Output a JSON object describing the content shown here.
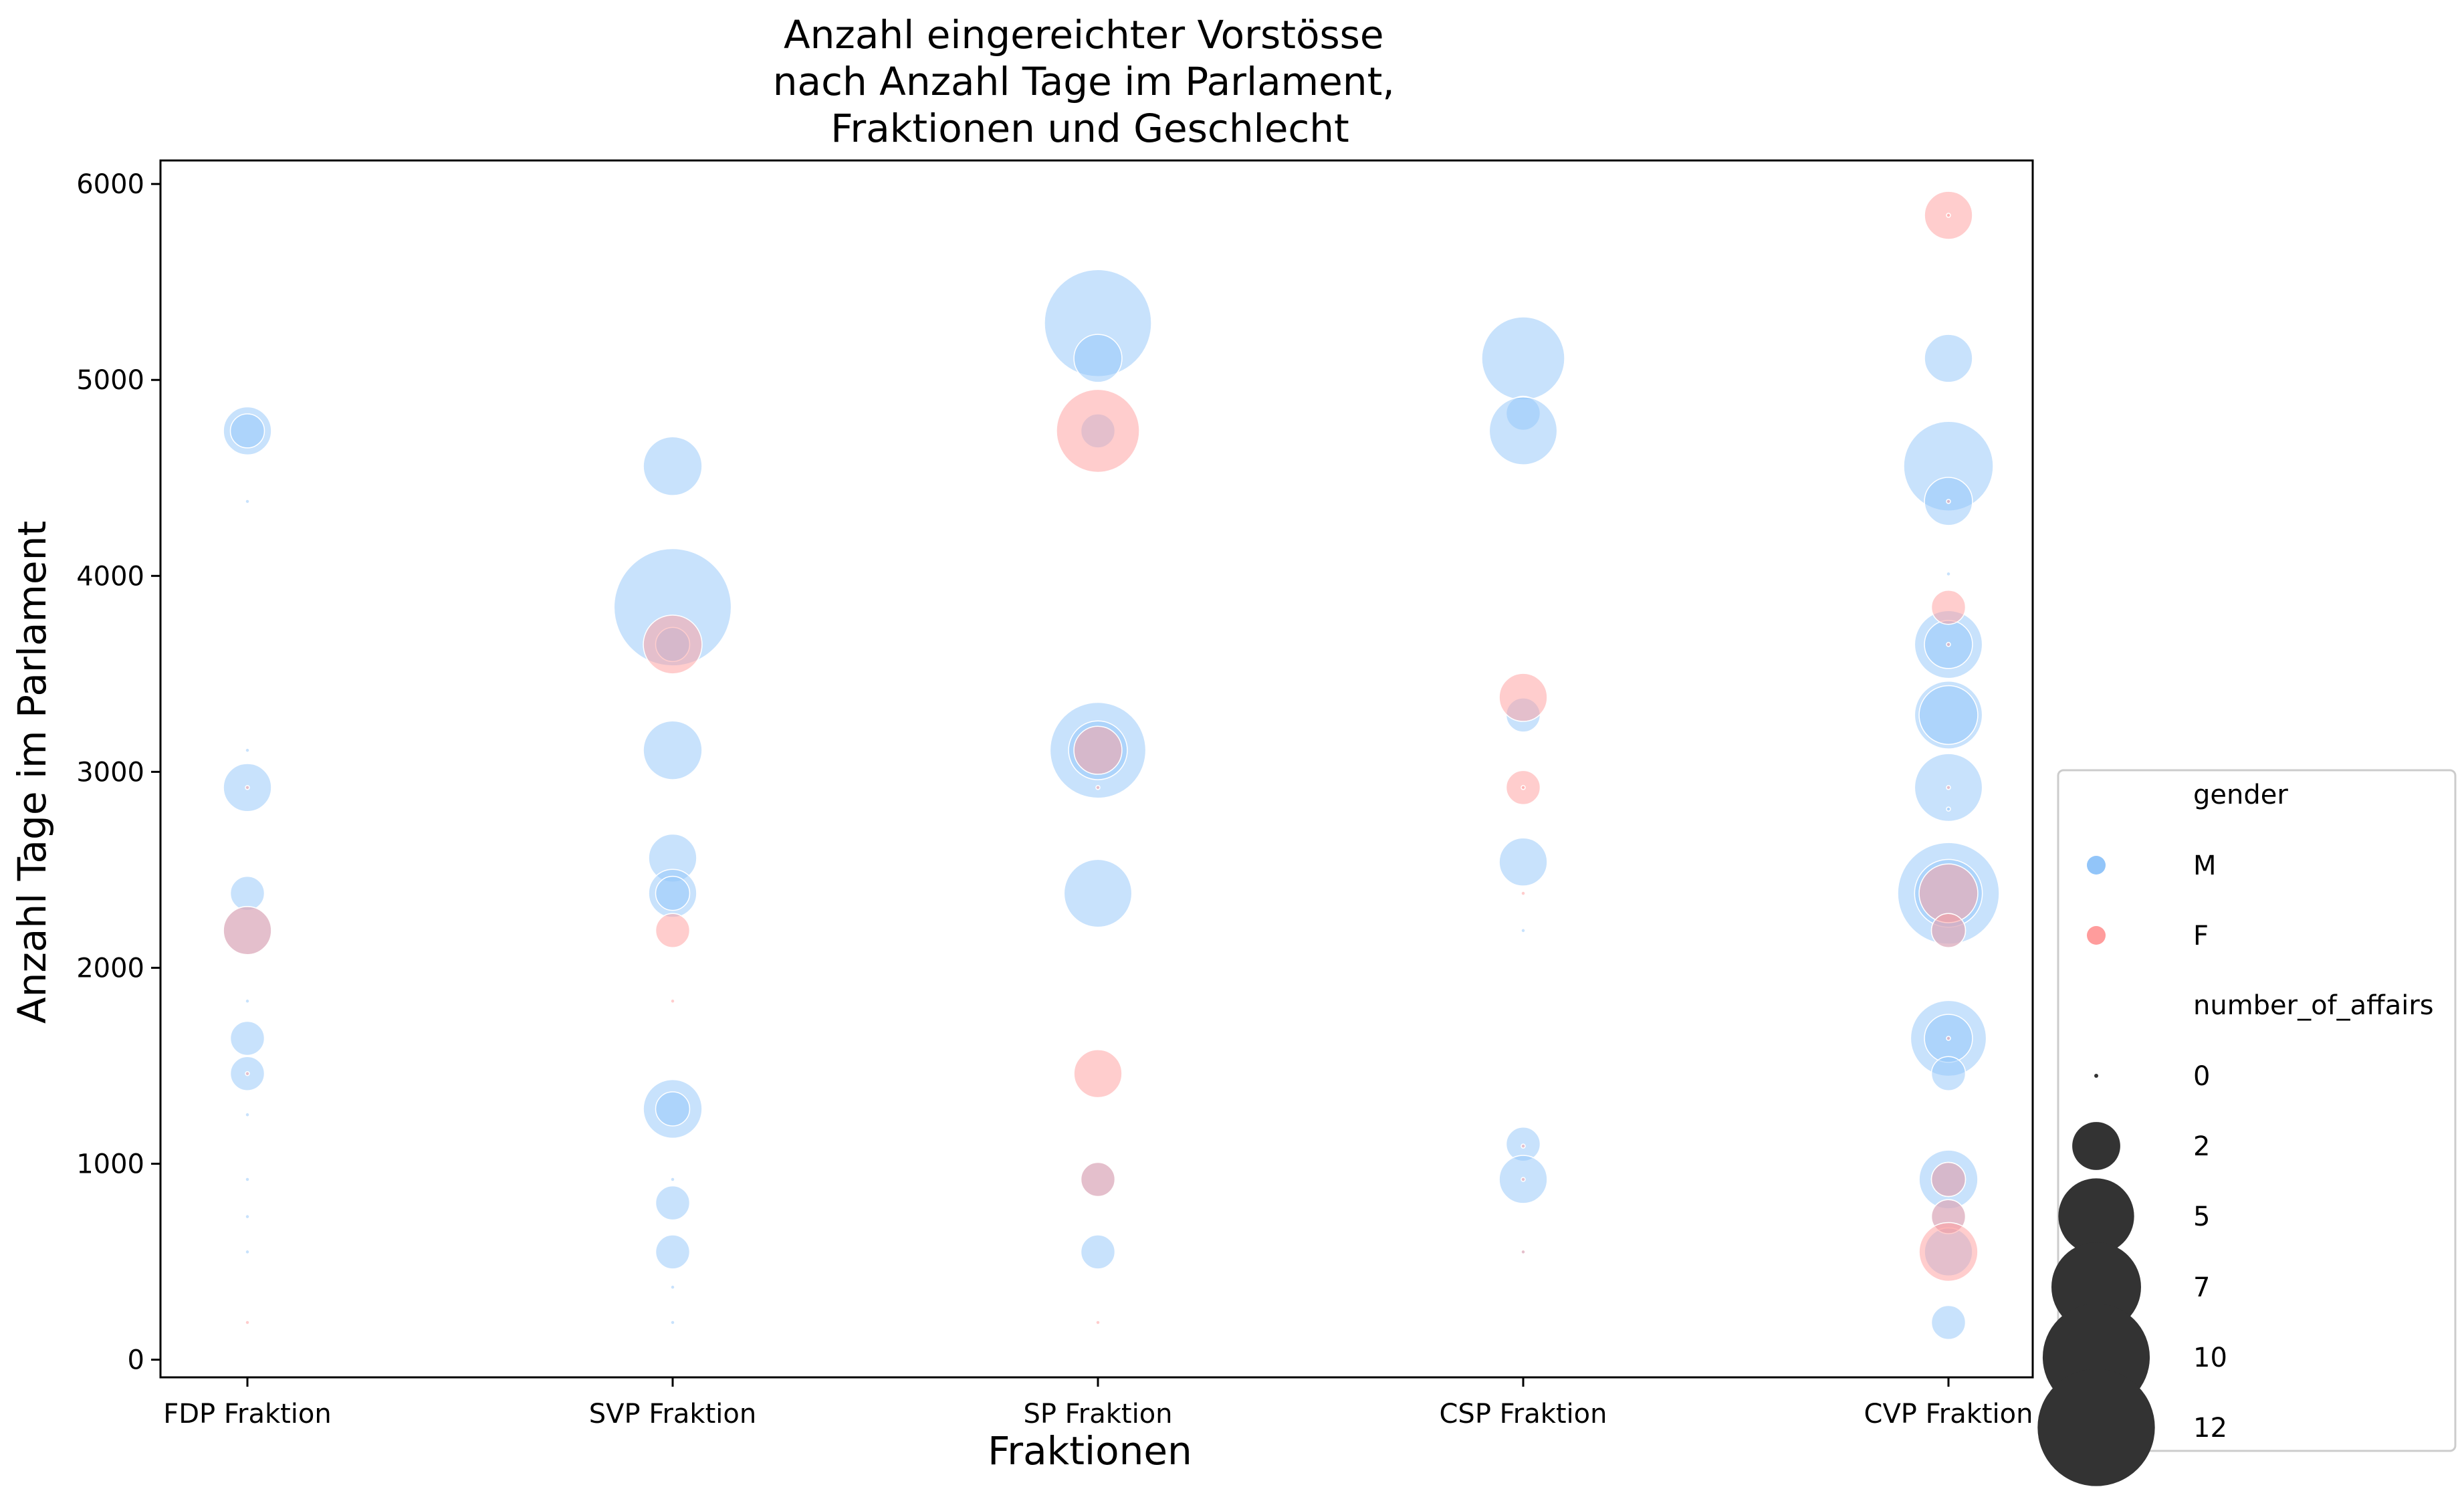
{
  "chart_data": {
    "type": "scatter",
    "title": "Anzahl eingereichter Vorstösse\nnach Anzahl Tage im Parlament,\nFraktionen und Geschlecht",
    "xlabel": "Fraktionen",
    "ylabel": "Anzahl Tage im Parlament",
    "categories": [
      "FDP Fraktion",
      "SVP Fraktion",
      "SP Fraktion",
      "CSP Fraktion",
      "CVP Fraktion"
    ],
    "ylim": [
      -90,
      6120
    ],
    "yticks": [
      0,
      1000,
      2000,
      3000,
      4000,
      5000,
      6000
    ],
    "grid": false,
    "colors": {
      "M": "#92c5f9",
      "F": "#ff9c9c"
    },
    "legend": {
      "placement": "right",
      "hue_title": "gender",
      "hue_entries": [
        "M",
        "F"
      ],
      "size_title": "number_of_affairs",
      "size_entries": [
        "0",
        "2",
        "5",
        "7",
        "10",
        "12"
      ]
    },
    "series": [
      {
        "name": "M",
        "points": [
          [
            "FDP Fraktion",
            4740,
            2
          ],
          [
            "FDP Fraktion",
            4740,
            1
          ],
          [
            "FDP Fraktion",
            4380,
            0
          ],
          [
            "FDP Fraktion",
            3110,
            0
          ],
          [
            "FDP Fraktion",
            2920,
            2
          ],
          [
            "FDP Fraktion",
            2380,
            1
          ],
          [
            "FDP Fraktion",
            2190,
            2
          ],
          [
            "FDP Fraktion",
            1830,
            0
          ],
          [
            "FDP Fraktion",
            1640,
            1
          ],
          [
            "FDP Fraktion",
            1460,
            1
          ],
          [
            "FDP Fraktion",
            1250,
            0
          ],
          [
            "FDP Fraktion",
            920,
            0
          ],
          [
            "FDP Fraktion",
            730,
            0
          ],
          [
            "FDP Fraktion",
            550,
            0
          ],
          [
            "SVP Fraktion",
            4560,
            3
          ],
          [
            "SVP Fraktion",
            3840,
            12
          ],
          [
            "SVP Fraktion",
            3650,
            1
          ],
          [
            "SVP Fraktion",
            3110,
            3
          ],
          [
            "SVP Fraktion",
            2560,
            2
          ],
          [
            "SVP Fraktion",
            2380,
            2
          ],
          [
            "SVP Fraktion",
            2380,
            1
          ],
          [
            "SVP Fraktion",
            1280,
            3
          ],
          [
            "SVP Fraktion",
            1280,
            1
          ],
          [
            "SVP Fraktion",
            920,
            0
          ],
          [
            "SVP Fraktion",
            800,
            1
          ],
          [
            "SVP Fraktion",
            550,
            1
          ],
          [
            "SVP Fraktion",
            370,
            0
          ],
          [
            "SVP Fraktion",
            190,
            0
          ],
          [
            "SP Fraktion",
            5290,
            10
          ],
          [
            "SP Fraktion",
            5110,
            2
          ],
          [
            "SP Fraktion",
            4740,
            1
          ],
          [
            "SP Fraktion",
            3110,
            8
          ],
          [
            "SP Fraktion",
            3110,
            3
          ],
          [
            "SP Fraktion",
            2380,
            4
          ],
          [
            "SP Fraktion",
            920,
            1
          ],
          [
            "SP Fraktion",
            550,
            1
          ],
          [
            "CSP Fraktion",
            5110,
            6
          ],
          [
            "CSP Fraktion",
            4830,
            1
          ],
          [
            "CSP Fraktion",
            4740,
            4
          ],
          [
            "CSP Fraktion",
            3290,
            1
          ],
          [
            "CSP Fraktion",
            2540,
            2
          ],
          [
            "CSP Fraktion",
            2190,
            0
          ],
          [
            "CSP Fraktion",
            1100,
            1
          ],
          [
            "CSP Fraktion",
            920,
            2
          ],
          [
            "CSP Fraktion",
            550,
            0
          ],
          [
            "CVP Fraktion",
            5110,
            2
          ],
          [
            "CVP Fraktion",
            4560,
            7
          ],
          [
            "CVP Fraktion",
            4380,
            2
          ],
          [
            "CVP Fraktion",
            4010,
            0
          ],
          [
            "CVP Fraktion",
            3650,
            4
          ],
          [
            "CVP Fraktion",
            3650,
            2
          ],
          [
            "CVP Fraktion",
            3290,
            4
          ],
          [
            "CVP Fraktion",
            3290,
            3
          ],
          [
            "CVP Fraktion",
            2920,
            4
          ],
          [
            "CVP Fraktion",
            2810,
            0
          ],
          [
            "CVP Fraktion",
            2380,
            9
          ],
          [
            "CVP Fraktion",
            2380,
            4
          ],
          [
            "CVP Fraktion",
            2190,
            1
          ],
          [
            "CVP Fraktion",
            1640,
            5
          ],
          [
            "CVP Fraktion",
            1640,
            2
          ],
          [
            "CVP Fraktion",
            1460,
            1
          ],
          [
            "CVP Fraktion",
            920,
            3
          ],
          [
            "CVP Fraktion",
            920,
            1
          ],
          [
            "CVP Fraktion",
            730,
            1
          ],
          [
            "CVP Fraktion",
            550,
            2
          ],
          [
            "CVP Fraktion",
            190,
            1
          ]
        ]
      },
      {
        "name": "F",
        "points": [
          [
            "FDP Fraktion",
            2920,
            0
          ],
          [
            "FDP Fraktion",
            2190,
            2
          ],
          [
            "FDP Fraktion",
            1460,
            0
          ],
          [
            "FDP Fraktion",
            190,
            0
          ],
          [
            "SVP Fraktion",
            3650,
            3
          ],
          [
            "SVP Fraktion",
            2190,
            1
          ],
          [
            "SVP Fraktion",
            1830,
            0
          ],
          [
            "SP Fraktion",
            4740,
            6
          ],
          [
            "SP Fraktion",
            3110,
            2
          ],
          [
            "SP Fraktion",
            2920,
            0
          ],
          [
            "SP Fraktion",
            1460,
            2
          ],
          [
            "SP Fraktion",
            920,
            1
          ],
          [
            "SP Fraktion",
            190,
            0
          ],
          [
            "CSP Fraktion",
            3380,
            2
          ],
          [
            "CSP Fraktion",
            2920,
            1
          ],
          [
            "CSP Fraktion",
            2920,
            0
          ],
          [
            "CSP Fraktion",
            2380,
            0
          ],
          [
            "CSP Fraktion",
            1090,
            0
          ],
          [
            "CSP Fraktion",
            920,
            0
          ],
          [
            "CSP Fraktion",
            550,
            0
          ],
          [
            "CVP Fraktion",
            5840,
            2
          ],
          [
            "CVP Fraktion",
            5840,
            0
          ],
          [
            "CVP Fraktion",
            4380,
            0
          ],
          [
            "CVP Fraktion",
            3840,
            1
          ],
          [
            "CVP Fraktion",
            3650,
            0
          ],
          [
            "CVP Fraktion",
            2920,
            0
          ],
          [
            "CVP Fraktion",
            2380,
            3
          ],
          [
            "CVP Fraktion",
            2190,
            1
          ],
          [
            "CVP Fraktion",
            1640,
            0
          ],
          [
            "CVP Fraktion",
            920,
            1
          ],
          [
            "CVP Fraktion",
            730,
            1
          ],
          [
            "CVP Fraktion",
            550,
            3
          ]
        ]
      }
    ]
  }
}
